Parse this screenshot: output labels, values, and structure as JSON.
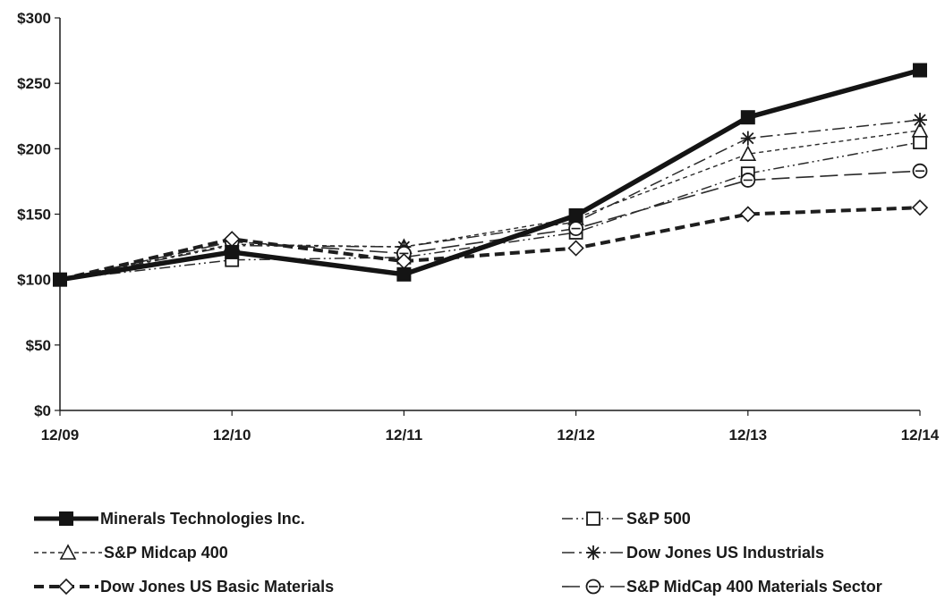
{
  "chart_data": {
    "type": "line",
    "categories": [
      "12/09",
      "12/10",
      "12/11",
      "12/12",
      "12/13",
      "12/14"
    ],
    "y_ticks": [
      "$0",
      "$50",
      "$100",
      "$150",
      "$200",
      "$250",
      "$300"
    ],
    "ylim": [
      0,
      300
    ],
    "grid": false,
    "legend_position": "bottom",
    "series": [
      {
        "name": "Minerals Technologies Inc.",
        "marker": "filled-square",
        "style": "thick-solid",
        "values": [
          100,
          121,
          104,
          149,
          224,
          260
        ]
      },
      {
        "name": "S&P 500",
        "marker": "open-square",
        "style": "dash-dot-dot",
        "values": [
          100,
          115,
          117,
          136,
          181,
          205
        ]
      },
      {
        "name": "S&P Midcap 400",
        "marker": "open-triangle",
        "style": "dashed",
        "values": [
          100,
          127,
          125,
          147,
          196,
          214
        ]
      },
      {
        "name": "Dow Jones US Industrials",
        "marker": "asterisk",
        "style": "dash-dot",
        "values": [
          100,
          126,
          125,
          144,
          208,
          222
        ]
      },
      {
        "name": "Dow Jones US Basic Materials",
        "marker": "open-diamond",
        "style": "thick-dashed",
        "values": [
          100,
          131,
          114,
          124,
          150,
          155
        ]
      },
      {
        "name": "S&P MidCap 400 Materials Sector",
        "marker": "circle-with-bar",
        "style": "long-dash",
        "values": [
          100,
          129,
          120,
          139,
          176,
          183
        ]
      }
    ]
  }
}
